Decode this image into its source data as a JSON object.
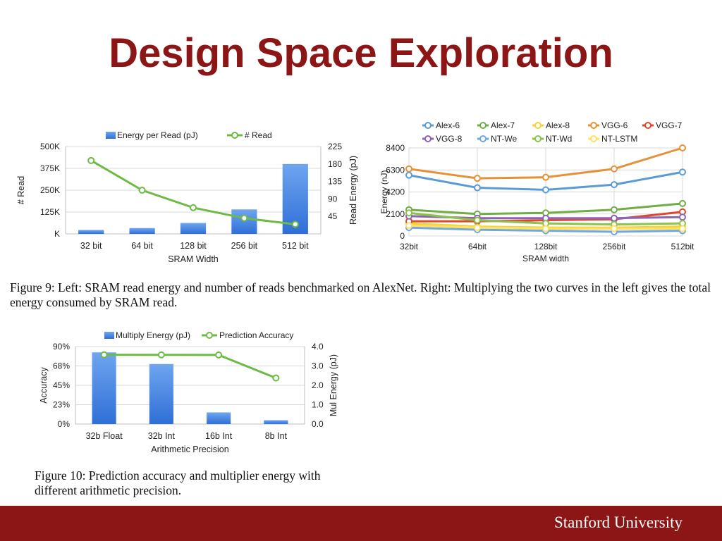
{
  "slide": {
    "title": "Design Space Exploration",
    "footer": "Stanford University",
    "accent_color": "#8c1515"
  },
  "captions": {
    "fig9": "Figure 9: Left: SRAM read energy and number of reads benchmarked on AlexNet. Right: Multiplying the two curves in the left gives the total energy consumed by SRAM read.",
    "fig10": "Figure 10: Prediction accuracy and multiplier energy with different arithmetic precision."
  },
  "chart_data": [
    {
      "type": "bar",
      "categories": [
        "32 bit",
        "64 bit",
        "128 bit",
        "256 bit",
        "512 bit"
      ],
      "xlabel": "SRAM Width",
      "ylabel": "# Read",
      "y2label": "Read Energy (pJ)",
      "ylim": [
        0,
        500000
      ],
      "y2lim": [
        0,
        225
      ],
      "yticks": [
        "K",
        "125K",
        "250K",
        "375K",
        "500K"
      ],
      "y2ticks": [
        "",
        "45",
        "90",
        "135",
        "180",
        "225"
      ],
      "legend_position": "top",
      "grid": true,
      "series": [
        {
          "name": "Energy per Read (pJ)",
          "type": "bar",
          "axis": "right",
          "color": "#4a86e8",
          "values": [
            10,
            15,
            28,
            63,
            180
          ]
        },
        {
          "name": "# Read",
          "type": "line",
          "axis": "left",
          "color": "#6dbb45",
          "values": [
            420000,
            250000,
            150000,
            90000,
            55000
          ]
        }
      ]
    },
    {
      "type": "line",
      "categories": [
        "32bit",
        "64bit",
        "128bit",
        "256bit",
        "512bit"
      ],
      "xlabel": "SRAM width",
      "ylabel": "Energy (nJ)",
      "ylim": [
        0,
        8400
      ],
      "yticks": [
        "0",
        "2100",
        "4200",
        "6300",
        "8400"
      ],
      "legend_position": "top",
      "grid": true,
      "series": [
        {
          "name": "Alex-6",
          "color": "#5b9bd5",
          "values": [
            5800,
            4600,
            4400,
            4900,
            6100
          ]
        },
        {
          "name": "Alex-7",
          "color": "#70ad47",
          "values": [
            2500,
            2100,
            2200,
            2500,
            3100
          ]
        },
        {
          "name": "Alex-8",
          "color": "#f2d33a",
          "values": [
            1200,
            900,
            800,
            800,
            900
          ]
        },
        {
          "name": "VGG-6",
          "color": "#e69138",
          "values": [
            6400,
            5500,
            5600,
            6400,
            8400
          ]
        },
        {
          "name": "VGG-7",
          "color": "#e0482b",
          "values": [
            1400,
            1400,
            1500,
            1600,
            2300
          ]
        },
        {
          "name": "VGG-8",
          "color": "#8e63b5",
          "values": [
            1900,
            1700,
            1700,
            1700,
            1800
          ]
        },
        {
          "name": "NT-We",
          "color": "#6fa8dc",
          "values": [
            800,
            600,
            500,
            400,
            500
          ]
        },
        {
          "name": "NT-Wd",
          "color": "#8bc34a",
          "values": [
            2200,
            1500,
            1200,
            1100,
            1200
          ]
        },
        {
          "name": "NT-LSTM",
          "color": "#ffe066",
          "values": [
            1000,
            800,
            700,
            700,
            700
          ]
        }
      ]
    },
    {
      "type": "bar",
      "categories": [
        "32b Float",
        "32b Int",
        "16b Int",
        "8b Int"
      ],
      "xlabel": "Arithmetic Precision",
      "ylabel": "Accuracy",
      "y2label": "Mul Energy (pJ)",
      "ylim": [
        0,
        90
      ],
      "y2lim": [
        0,
        4
      ],
      "yticks": [
        "0%",
        "23%",
        "45%",
        "68%",
        "90%"
      ],
      "y2ticks": [
        "0.0",
        "1.0",
        "2.0",
        "3.0",
        "4.0"
      ],
      "legend_position": "top",
      "grid": true,
      "series": [
        {
          "name": "Multiply Energy (pJ)",
          "type": "bar",
          "axis": "right",
          "color": "#4a86e8",
          "values": [
            3.7,
            3.1,
            0.6,
            0.2
          ]
        },
        {
          "name": "Prediction Accuracy",
          "type": "line",
          "axis": "left",
          "color": "#6dbb45",
          "values": [
            80.5,
            80.4,
            80.3,
            53.5
          ]
        }
      ]
    }
  ]
}
